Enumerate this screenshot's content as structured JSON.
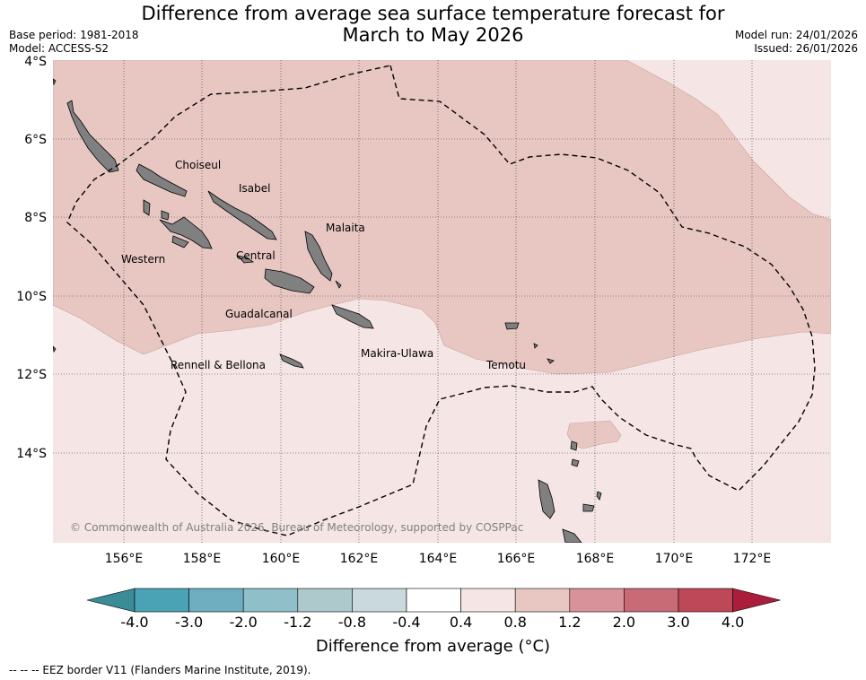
{
  "title_line1": "Difference from average sea surface temperature forecast for",
  "title_line2": "March to May 2026",
  "base_period": "Base period: 1981-2018",
  "model": "Model: ACCESS-S2",
  "model_run": "Model run: 24/01/2026",
  "issued": "Issued: 26/01/2026",
  "lat_ticks": [
    "4°S",
    "6°S",
    "8°S",
    "10°S",
    "12°S",
    "14°S"
  ],
  "lon_ticks": [
    "156°E",
    "158°E",
    "160°E",
    "162°E",
    "164°E",
    "166°E",
    "168°E",
    "170°E",
    "172°E"
  ],
  "regions": [
    "Choiseul",
    "Isabel",
    "Malaita",
    "Western",
    "Central",
    "Guadalcanal",
    "Makira-Ulawa",
    "Rennell & Bellona",
    "Temotu"
  ],
  "copyright": "© Commonwealth of Australia 2026, Bureau of Meteorology, supported by COSPPac",
  "colorbar": {
    "labels": [
      "-4.0",
      "-3.0",
      "-2.0",
      "-1.2",
      "-0.8",
      "-0.4",
      "0.4",
      "0.8",
      "1.2",
      "2.0",
      "3.0",
      "4.0"
    ],
    "colors": [
      "#3b8c98",
      "#4aa3b5",
      "#6eaec0",
      "#8fbfc9",
      "#adc9cc",
      "#c9d9dd",
      "#ffffff",
      "#f5e6e5",
      "#e8c7c3",
      "#d8939a",
      "#c96a77",
      "#bf4858",
      "#aa1e3c"
    ],
    "title": "Difference from average ($^\\circ$C)"
  },
  "eez_note": "--  --  -- EEZ border V11 (Flanders Marine Institute, 2019).",
  "colors": {
    "band_0_4_to_0_8": "#f5e6e5",
    "band_0_8_to_1_2": "#e8c7c3",
    "land": "#808080",
    "eez": "#000000"
  }
}
